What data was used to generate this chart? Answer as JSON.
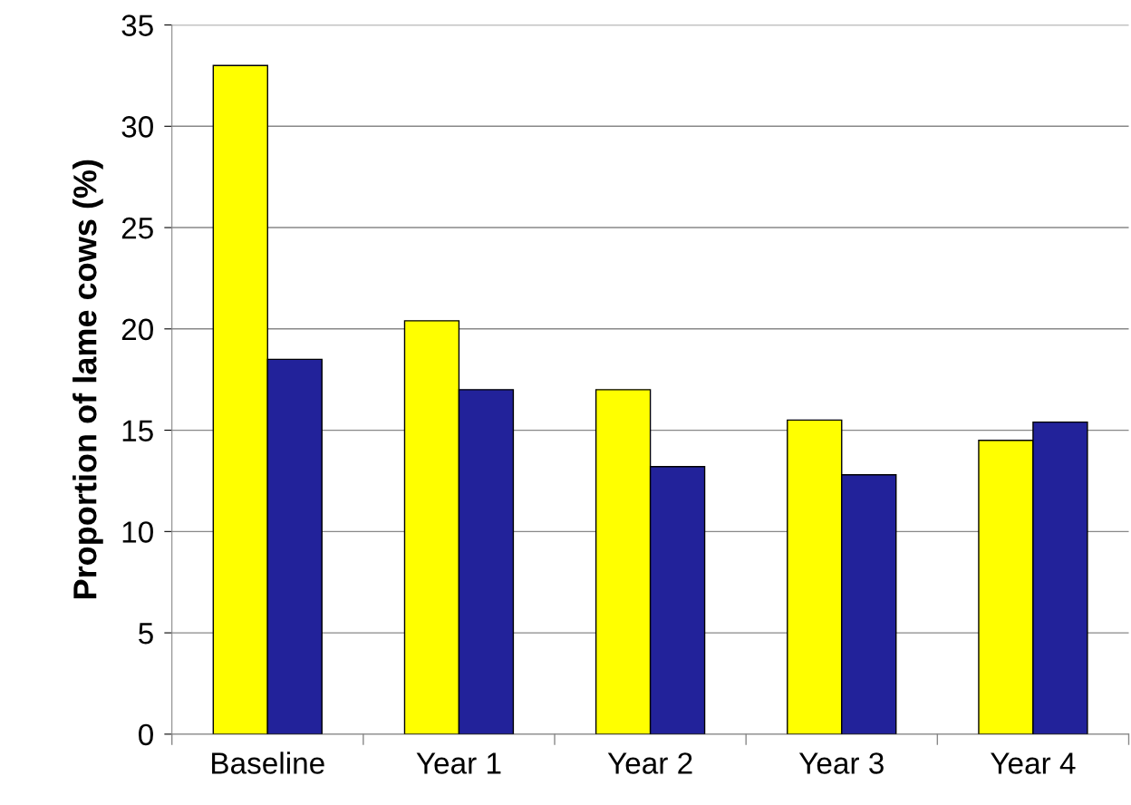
{
  "chart_data": {
    "type": "bar",
    "ylabel": "Proportion of lame cows (%)",
    "categories": [
      "Baseline",
      "Year 1",
      "Year 2",
      "Year 3",
      "Year 4"
    ],
    "series": [
      {
        "color": "#ffff00",
        "values": [
          33,
          20.4,
          17,
          15.5,
          14.5
        ]
      },
      {
        "color": "#22229a",
        "values": [
          18.5,
          17,
          13.2,
          12.8,
          15.4
        ]
      }
    ],
    "ylim": [
      0,
      35
    ],
    "yticks": [
      0,
      5,
      10,
      15,
      20,
      25,
      30,
      35
    ],
    "grid": "y"
  }
}
